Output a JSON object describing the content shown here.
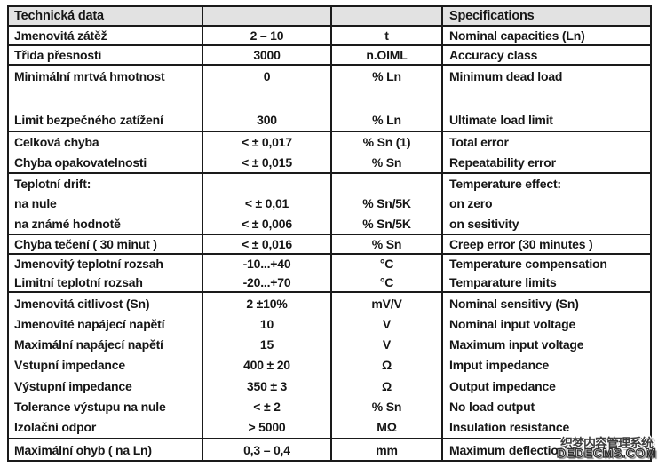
{
  "colors": {
    "page_bg": "#ffffff",
    "header_bg": "#e2e2e2",
    "border": "#1a1a1a",
    "text": "#161616"
  },
  "table": {
    "header": {
      "cz": "Technická data",
      "value": "",
      "unit": "",
      "en": "Specifications"
    },
    "rows": [
      {
        "cz": "Jmenovitá zátěž",
        "val": "2 – 10",
        "unit": "t",
        "en": "Nominal capacities (Ln)"
      },
      {
        "cz": "Třída přesnosti",
        "val": "3000",
        "unit": "n.OIML",
        "en": "Accuracy class"
      },
      {
        "cz": "Minimální mrtvá hmotnost",
        "val": "0",
        "unit": "% Ln",
        "en": "Minimum dead load"
      },
      {
        "cz": "",
        "val": "",
        "unit": "",
        "en": ""
      },
      {
        "cz": "Limit bezpečného zatížení",
        "val": "300",
        "unit": "% Ln",
        "en": "Ultimate load limit"
      },
      {
        "cz": "Celková chyba",
        "val": "< ± 0,017",
        "unit": "% Sn (1)",
        "en": "Total error"
      },
      {
        "cz": "Chyba opakovatelnosti",
        "val": "< ± 0,015",
        "unit": "% Sn",
        "en": "Repeatability error"
      },
      {
        "cz": "Teplotní drift:",
        "val": "",
        "unit": "",
        "en": "Temperature effect:"
      },
      {
        "cz": "na nule",
        "val": "< ± 0,01",
        "unit": "% Sn/5K",
        "en": "on zero"
      },
      {
        "cz": "na známé hodnotě",
        "val": "< ± 0,006",
        "unit": "% Sn/5K",
        "en": "on sesitivity"
      },
      {
        "cz": "Chyba tečení ( 30 minut )",
        "val": "< ± 0,016",
        "unit": "% Sn",
        "en": "Creep error (30 minutes )"
      },
      {
        "cz": "Jmenovitý teplotní rozsah",
        "val": "-10...+40",
        "unit": "°C",
        "en": "Temperature compensation"
      },
      {
        "cz": "Limitní teplotní rozsah",
        "val": "-20...+70",
        "unit": "°C",
        "en": "Temparature limits"
      },
      {
        "cz": "Jmenovitá citlivost (Sn)",
        "val": "2 ±10%",
        "unit": "mV/V",
        "en": "Nominal sensitivy (Sn)"
      },
      {
        "cz": "Jmenovité napájecí napětí",
        "val": "10",
        "unit": "V",
        "en": "Nominal input voltage"
      },
      {
        "cz": "Maximální napájecí napětí",
        "val": "15",
        "unit": "V",
        "en": "Maximum input voltage"
      },
      {
        "cz": "Vstupní impedance",
        "val": "400 ± 20",
        "unit": "Ω",
        "en": "Imput impedance"
      },
      {
        "cz": "Výstupní impedance",
        "val": "350 ± 3",
        "unit": "Ω",
        "en": "Output impedance"
      },
      {
        "cz": "Tolerance výstupu na nule",
        "val": "< ± 2",
        "unit": "% Sn",
        "en": "No load output"
      },
      {
        "cz": "Izolační odpor",
        "val": "> 5000",
        "unit": "MΩ",
        "en": "Insulation resistance"
      },
      {
        "cz": "Maximální ohyb ( na Ln)",
        "val": "0,3 – 0,4",
        "unit": "mm",
        "en": "Maximum deflection"
      }
    ]
  },
  "watermark": {
    "line1": "织梦内容管理系统",
    "line2": "DEDECMS.COM"
  }
}
